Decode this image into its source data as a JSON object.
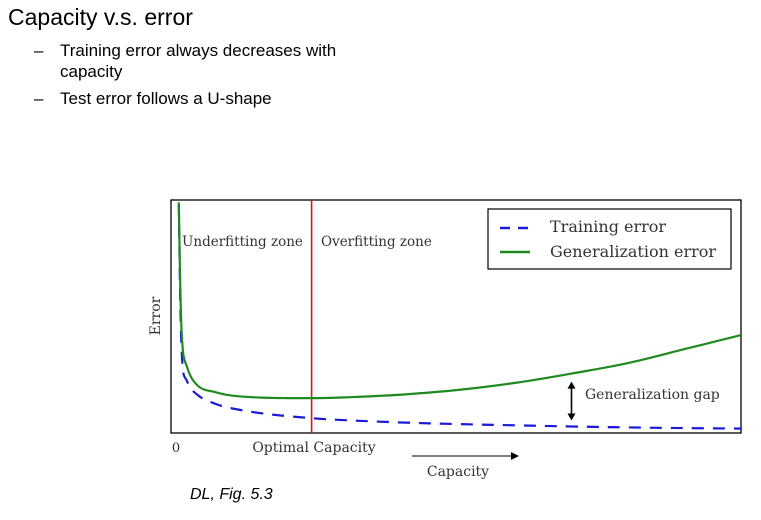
{
  "slide": {
    "title": "Capacity v.s. error",
    "bullets": [
      "Training error always decreases with capacity",
      "Test error follows a U-shape"
    ],
    "caption": "DL, Fig. 5.3"
  },
  "chart_data": {
    "type": "line",
    "xlabel": "Capacity",
    "ylabel": "Error",
    "x_tick_labels": [
      "0"
    ],
    "xlim": [
      0,
      10
    ],
    "ylim": [
      0,
      10
    ],
    "grid": false,
    "legend_position": "top-right",
    "series": [
      {
        "name": "Training error",
        "style": "dashed",
        "color": "#1a1ad8",
        "x": [
          0.05,
          0.1,
          0.2,
          0.4,
          0.7,
          1.0,
          1.5,
          2.0,
          2.5,
          3.0,
          4.0,
          5.0,
          6.0,
          7.0,
          8.0,
          9.0,
          10.0
        ],
        "y": [
          9.8,
          3.5,
          2.2,
          1.6,
          1.25,
          1.05,
          0.85,
          0.72,
          0.62,
          0.55,
          0.45,
          0.38,
          0.33,
          0.28,
          0.24,
          0.21,
          0.19
        ]
      },
      {
        "name": "Generalization error",
        "style": "solid",
        "color": "#1f8a1f",
        "x": [
          0.05,
          0.1,
          0.2,
          0.4,
          0.7,
          1.0,
          1.5,
          2.0,
          2.5,
          3.0,
          4.0,
          5.0,
          6.0,
          7.0,
          8.0,
          9.0,
          10.0
        ],
        "y": [
          9.9,
          4.3,
          2.8,
          2.0,
          1.75,
          1.6,
          1.52,
          1.5,
          1.5,
          1.53,
          1.65,
          1.85,
          2.15,
          2.55,
          3.0,
          3.6,
          4.2
        ]
      }
    ],
    "optimal_capacity": {
      "x": 2.4,
      "label": "Optimal Capacity",
      "color": "#e01010"
    },
    "annotations": {
      "underfitting": "Underfitting zone",
      "overfitting": "Overfitting zone",
      "gap_label": "Generalization gap",
      "gap_x": 7.0
    }
  }
}
